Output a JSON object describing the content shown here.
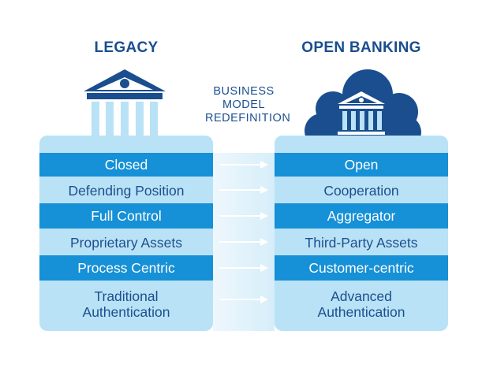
{
  "legacy": {
    "title": "LEGACY",
    "icon": "bank-building-icon",
    "items": [
      {
        "label": "Closed",
        "emphasis": true
      },
      {
        "label": "Defending Position",
        "emphasis": false
      },
      {
        "label": "Full Control",
        "emphasis": true
      },
      {
        "label": "Proprietary Assets",
        "emphasis": false
      },
      {
        "label": "Process Centric",
        "emphasis": true
      },
      {
        "label": "Traditional\nAuthentication",
        "emphasis": false
      }
    ]
  },
  "open_banking": {
    "title": "OPEN BANKING",
    "icon": "cloud-bank-icon",
    "items": [
      {
        "label": "Open",
        "emphasis": true
      },
      {
        "label": "Cooperation",
        "emphasis": false
      },
      {
        "label": "Aggregator",
        "emphasis": true
      },
      {
        "label": "Third-Party Assets",
        "emphasis": false
      },
      {
        "label": "Customer-centric",
        "emphasis": true
      },
      {
        "label": "Advanced\nAuthentication",
        "emphasis": false
      }
    ]
  },
  "transition": {
    "label_lines": [
      "BUSINESS",
      "MODEL",
      "REDEFINITION"
    ],
    "arrow_icon": "arrow-right-icon"
  },
  "colors": {
    "navy": "#1a4e8e",
    "bright_blue": "#1690d6",
    "light_blue": "#b9e2f6",
    "text_dark": "#1c4f8f"
  }
}
